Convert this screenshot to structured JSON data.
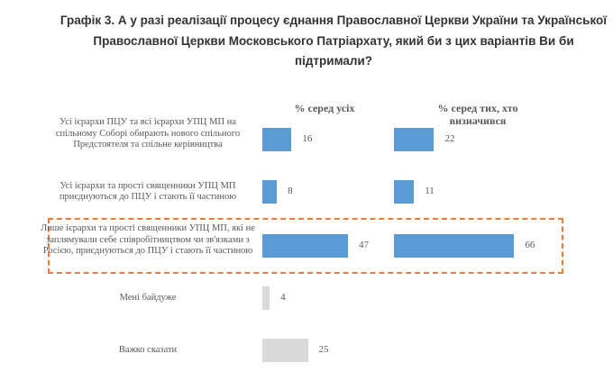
{
  "title": "Графік 3. А у разі реалізації процесу єднання Православної Церкви України та Української Православної Церкви Московського Патріархату, який би з цих варіантів Ви би підтримали?",
  "chart_data": {
    "type": "bar",
    "orientation": "horizontal",
    "title": "Графік 3. А у разі реалізації процесу єднання Православної Церкви України та Української Православної Церкви Московського Патріархату, який би з цих варіантів Ви би підтримали?",
    "categories": [
      "Усі ієрархи ПЦУ та всі ієрархи УПЦ МП на спільному Соборі обирають нового спільного Предстоятеля та спільне керівництва",
      "Усі ієрархи та прості священники УПЦ МП приєднуються до ПЦУ і стають її частиною",
      "Лише ієрархи та прості священники УПЦ МП, які не заплямували себе співробітництвом чи зв'язками з Росією, приєднуються до ПЦУ і стають її частиною",
      "Мені байдуже",
      "Важко сказати"
    ],
    "series": [
      {
        "name": "% серед усіх",
        "values": [
          16,
          8,
          47,
          4,
          25
        ]
      },
      {
        "name": "% серед тих, хто визначився",
        "values": [
          22,
          11,
          66,
          null,
          null
        ]
      }
    ],
    "highlighted_category_index": 2,
    "colors": {
      "bar": "#5b9bd5",
      "neutral": "#d9d9d9",
      "highlight_border": "#ed7d31"
    },
    "grid": false
  }
}
